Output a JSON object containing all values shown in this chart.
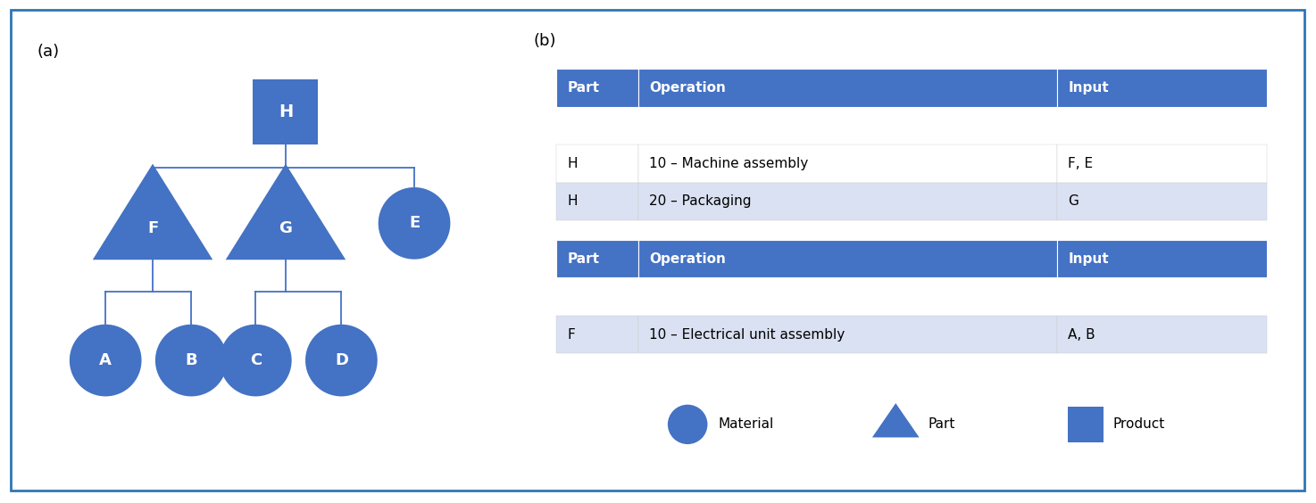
{
  "blue_dark": "#4472C4",
  "blue_light": "#D9E1F2",
  "border_color": "#2E75B6",
  "line_color": "#4472C4",
  "text_white": "#FFFFFF",
  "text_black": "#000000",
  "bg_color": "#FFFFFF",
  "panel_a_label": "(a)",
  "panel_b_label": "(b)",
  "table1_headers": [
    "Part",
    "Operation",
    "Input"
  ],
  "table1_rows": [
    [
      "H",
      "10 – Machine assembly",
      "F, E"
    ],
    [
      "H",
      "20 – Packaging",
      "G"
    ]
  ],
  "table2_headers": [
    "Part",
    "Operation",
    "Input"
  ],
  "table2_rows": [
    [
      "F",
      "10 – Electrical unit assembly",
      "A, B"
    ]
  ],
  "legend_labels": [
    "Material",
    "Part",
    "Product"
  ]
}
